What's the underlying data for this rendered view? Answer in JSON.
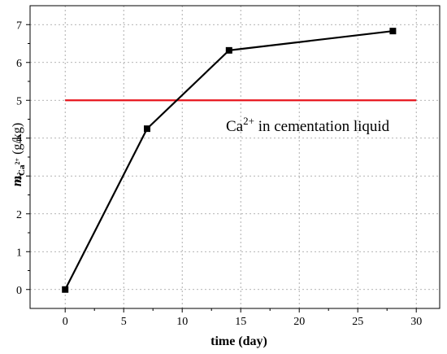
{
  "chart_data": {
    "type": "line",
    "xlabel": "time (day)",
    "ylabel": {
      "main": "m",
      "sub_base": "Ca",
      "sub_sup": "2+",
      "unit": " (g/kg)"
    },
    "xlim": [
      -3,
      32
    ],
    "ylim": [
      -0.5,
      7.5
    ],
    "xticks": [
      0,
      5,
      10,
      15,
      20,
      25,
      30
    ],
    "yticks": [
      0,
      1,
      2,
      3,
      4,
      5,
      6,
      7
    ],
    "grid": true,
    "series": [
      {
        "x": [
          0,
          7,
          14,
          28
        ],
        "y": [
          0,
          4.25,
          6.32,
          6.83
        ],
        "color": "#000000",
        "marker": "square"
      }
    ],
    "reference_line": {
      "y": 5,
      "x_range": [
        0,
        30
      ],
      "color": "#e8141c"
    },
    "annotation": {
      "base": "Ca",
      "sup": "2+",
      "rest": " in cementation liquid"
    }
  }
}
